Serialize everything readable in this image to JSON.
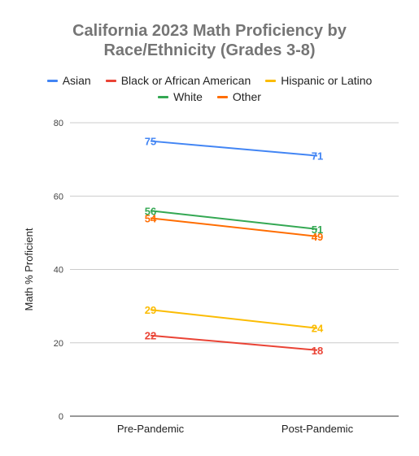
{
  "chart_data": {
    "type": "line",
    "title_lines": [
      "California 2023 Math Proficiency by",
      "Race/Ethnicity (Grades 3-8)"
    ],
    "xlabel": "",
    "ylabel": "Math % Proficient",
    "categories": [
      "Pre-Pandemic",
      "Post-Pandemic"
    ],
    "ylim": [
      0,
      80
    ],
    "yticks": [
      0,
      20,
      40,
      60,
      80
    ],
    "grid": true,
    "legend_position": "top",
    "series": [
      {
        "name": "Asian",
        "values": [
          75,
          71
        ],
        "color": "#4285f4"
      },
      {
        "name": "Black or African American",
        "values": [
          22,
          18
        ],
        "color": "#ea4335"
      },
      {
        "name": "Hispanic or Latino",
        "values": [
          29,
          24
        ],
        "color": "#fbbc04"
      },
      {
        "name": "White",
        "values": [
          56,
          51
        ],
        "color": "#34a853"
      },
      {
        "name": "Other",
        "values": [
          54,
          49
        ],
        "color": "#ff6d01"
      }
    ]
  }
}
